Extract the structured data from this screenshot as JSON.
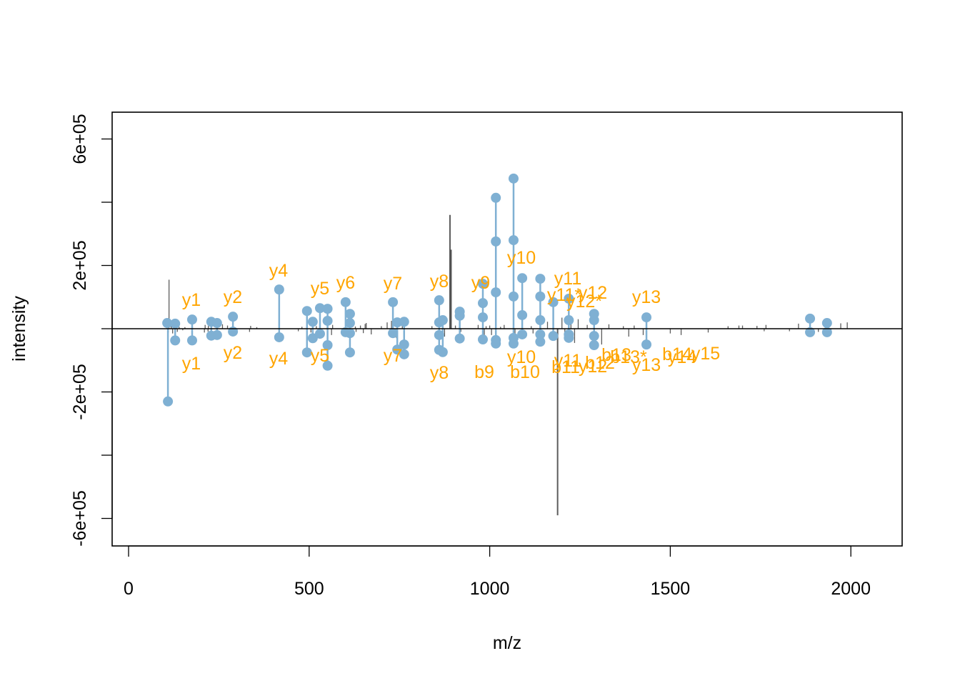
{
  "chart_data": {
    "type": "bar",
    "subtype": "mirror-spectrum",
    "title": "",
    "xlabel": "m/z",
    "ylabel": "intensity",
    "xlim": [
      -80,
      2150
    ],
    "ylim": [
      -680000,
      680000
    ],
    "x_ticks": [
      0,
      500,
      1000,
      1500,
      2000
    ],
    "x_tick_labels": [
      "0",
      "500",
      "1000",
      "1500",
      "2000"
    ],
    "y_ticks": [
      600000,
      400000,
      200000,
      0,
      -200000,
      -400000,
      -600000
    ],
    "y_tick_labels": [
      "6e+05",
      "",
      "2e+05",
      "",
      "-2e+05",
      "",
      "-6e+05"
    ],
    "grid": false,
    "legend": null,
    "colors": {
      "matched_peak": "#7FB0D3",
      "fragment_label": "#FFA500",
      "raw_peak": "#000000",
      "axis": "#000000"
    },
    "raw_peaks_top": [
      [
        112,
        155000
      ],
      [
        118,
        8000
      ],
      [
        140,
        6000
      ],
      [
        156,
        5000
      ],
      [
        212,
        12000
      ],
      [
        221,
        9000
      ],
      [
        260,
        14000
      ],
      [
        274,
        10000
      ],
      [
        338,
        9000
      ],
      [
        355,
        5000
      ],
      [
        480,
        6000
      ],
      [
        520,
        8000
      ],
      [
        565,
        12000
      ],
      [
        628,
        7000
      ],
      [
        642,
        10000
      ],
      [
        655,
        15000
      ],
      [
        658,
        18000
      ],
      [
        700,
        8000
      ],
      [
        716,
        20000
      ],
      [
        728,
        25000
      ],
      [
        758,
        12000
      ],
      [
        840,
        8000
      ],
      [
        890,
        360000
      ],
      [
        893,
        250000
      ],
      [
        905,
        10000
      ],
      [
        968,
        12000
      ],
      [
        990,
        8000
      ],
      [
        1000,
        10000
      ],
      [
        1030,
        6000
      ],
      [
        1040,
        12000
      ],
      [
        1115,
        8000
      ],
      [
        1160,
        22000
      ],
      [
        1200,
        35000
      ],
      [
        1225,
        30000
      ],
      [
        1245,
        30000
      ],
      [
        1270,
        12000
      ],
      [
        1330,
        14000
      ],
      [
        1370,
        8000
      ],
      [
        1400,
        10000
      ],
      [
        1660,
        8000
      ],
      [
        1690,
        10000
      ],
      [
        1700,
        10000
      ],
      [
        1740,
        9000
      ],
      [
        1765,
        12000
      ],
      [
        1855,
        16000
      ],
      [
        1935,
        20000
      ],
      [
        1972,
        17000
      ],
      [
        1990,
        20000
      ]
    ],
    "raw_peaks_bottom": [
      [
        110,
        -12000
      ],
      [
        122,
        -15000
      ],
      [
        135,
        -10000
      ],
      [
        150,
        -5000
      ],
      [
        210,
        -12000
      ],
      [
        220,
        -9000
      ],
      [
        300,
        -14000
      ],
      [
        335,
        -10000
      ],
      [
        470,
        -8000
      ],
      [
        505,
        -12000
      ],
      [
        562,
        -20000
      ],
      [
        630,
        -10000
      ],
      [
        650,
        -14000
      ],
      [
        672,
        -18000
      ],
      [
        742,
        -30000
      ],
      [
        860,
        -35000
      ],
      [
        875,
        -25000
      ],
      [
        920,
        -10000
      ],
      [
        985,
        -40000
      ],
      [
        1005,
        -20000
      ],
      [
        1070,
        -35000
      ],
      [
        1120,
        -15000
      ],
      [
        1188,
        -590000
      ],
      [
        1208,
        -25000
      ],
      [
        1235,
        -45000
      ],
      [
        1310,
        -50000
      ],
      [
        1385,
        -25000
      ],
      [
        1425,
        -20000
      ],
      [
        1500,
        -15000
      ],
      [
        1530,
        -20000
      ],
      [
        1605,
        -12000
      ],
      [
        1760,
        -8000
      ],
      [
        1830,
        -8000
      ],
      [
        1910,
        -10000
      ],
      [
        1945,
        -10000
      ]
    ],
    "matched_peaks_top": [
      {
        "mz": 107,
        "intensities": [
          18000
        ]
      },
      {
        "mz": 129,
        "intensities": [
          16000
        ]
      },
      {
        "mz": 176,
        "intensities": [
          29000
        ]
      },
      {
        "mz": 229,
        "intensities": [
          22000
        ]
      },
      {
        "mz": 245,
        "intensities": [
          18000
        ]
      },
      {
        "mz": 289,
        "intensities": [
          38000
        ]
      },
      {
        "mz": 417,
        "intensities": [
          124000
        ]
      },
      {
        "mz": 494,
        "intensities": [
          56000
        ]
      },
      {
        "mz": 510,
        "intensities": [
          22000
        ]
      },
      {
        "mz": 530,
        "intensities": [
          65000
        ]
      },
      {
        "mz": 551,
        "intensities": [
          63000,
          25000
        ]
      },
      {
        "mz": 601,
        "intensities": [
          84000
        ]
      },
      {
        "mz": 613,
        "intensities": [
          47000,
          18000
        ]
      },
      {
        "mz": 732,
        "intensities": [
          84000
        ]
      },
      {
        "mz": 744,
        "intensities": [
          20000
        ]
      },
      {
        "mz": 763,
        "intensities": [
          22000
        ]
      },
      {
        "mz": 860,
        "intensities": [
          90000,
          20000
        ]
      },
      {
        "mz": 870,
        "intensities": [
          27000
        ]
      },
      {
        "mz": 917,
        "intensities": [
          54000,
          41000
        ]
      },
      {
        "mz": 981,
        "intensities": [
          142000,
          81000,
          36000
        ]
      },
      {
        "mz": 1017,
        "intensities": [
          414000,
          276000,
          115000
        ]
      },
      {
        "mz": 1066,
        "intensities": [
          475000,
          280000,
          102000
        ]
      },
      {
        "mz": 1090,
        "intensities": [
          160000,
          43000
        ]
      },
      {
        "mz": 1140,
        "intensities": [
          158000,
          102000,
          27000
        ]
      },
      {
        "mz": 1176,
        "intensities": [
          84000
        ]
      },
      {
        "mz": 1219,
        "intensities": [
          95000,
          27000
        ]
      },
      {
        "mz": 1289,
        "intensities": [
          47000,
          27000
        ]
      },
      {
        "mz": 1434,
        "intensities": [
          36000
        ]
      },
      {
        "mz": 1887,
        "intensities": [
          32000
        ]
      },
      {
        "mz": 1934,
        "intensities": [
          18000
        ]
      }
    ],
    "matched_peaks_bottom": [
      {
        "mz": 109,
        "intensities": [
          -230000
        ]
      },
      {
        "mz": 129,
        "intensities": [
          -37000
        ]
      },
      {
        "mz": 176,
        "intensities": [
          -37000
        ]
      },
      {
        "mz": 229,
        "intensities": [
          -22000
        ]
      },
      {
        "mz": 245,
        "intensities": [
          -20000
        ]
      },
      {
        "mz": 289,
        "intensities": [
          -9000
        ]
      },
      {
        "mz": 417,
        "intensities": [
          -27000
        ]
      },
      {
        "mz": 494,
        "intensities": [
          -75000
        ]
      },
      {
        "mz": 510,
        "intensities": [
          -30000
        ]
      },
      {
        "mz": 530,
        "intensities": [
          -16000
        ]
      },
      {
        "mz": 551,
        "intensities": [
          -52000,
          -117000
        ]
      },
      {
        "mz": 601,
        "intensities": [
          -11000
        ]
      },
      {
        "mz": 613,
        "intensities": [
          -75000,
          -14000
        ]
      },
      {
        "mz": 732,
        "intensities": [
          -14000
        ]
      },
      {
        "mz": 744,
        "intensities": [
          -66000
        ]
      },
      {
        "mz": 763,
        "intensities": [
          -50000,
          -81000
        ]
      },
      {
        "mz": 860,
        "intensities": [
          -20000,
          -67000
        ]
      },
      {
        "mz": 870,
        "intensities": [
          -74000
        ]
      },
      {
        "mz": 917,
        "intensities": [
          -31000
        ]
      },
      {
        "mz": 981,
        "intensities": [
          -34000
        ]
      },
      {
        "mz": 1017,
        "intensities": [
          -36000,
          -47000
        ]
      },
      {
        "mz": 1066,
        "intensities": [
          -29000,
          -47000
        ]
      },
      {
        "mz": 1090,
        "intensities": [
          -18000
        ]
      },
      {
        "mz": 1140,
        "intensities": [
          -18000,
          -41000
        ]
      },
      {
        "mz": 1176,
        "intensities": [
          -23000
        ]
      },
      {
        "mz": 1219,
        "intensities": [
          -18000,
          -29000
        ]
      },
      {
        "mz": 1289,
        "intensities": [
          -23000,
          -52000
        ]
      },
      {
        "mz": 1434,
        "intensities": [
          -50000
        ]
      },
      {
        "mz": 1887,
        "intensities": [
          -11000
        ]
      },
      {
        "mz": 1934,
        "intensities": [
          -11000
        ]
      }
    ],
    "labels_top": [
      {
        "text": "y1",
        "x": 268,
        "y": 428
      },
      {
        "text": "y2",
        "x": 326,
        "y": 424
      },
      {
        "text": "y4",
        "x": 390,
        "y": 387
      },
      {
        "text": "y5",
        "x": 448,
        "y": 412
      },
      {
        "text": "y6",
        "x": 484,
        "y": 404
      },
      {
        "text": "y7",
        "x": 550,
        "y": 405
      },
      {
        "text": "y8",
        "x": 615,
        "y": 402
      },
      {
        "text": "y9",
        "x": 673,
        "y": 404
      },
      {
        "text": "y10",
        "x": 730,
        "y": 369
      },
      {
        "text": "y11",
        "x": 795,
        "y": 398
      },
      {
        "text": "y11*",
        "x": 790,
        "y": 421
      },
      {
        "text": "y12",
        "x": 830,
        "y": 418
      },
      {
        "text": "y12*",
        "x": 818,
        "y": 430
      },
      {
        "text": "y13",
        "x": 905,
        "y": 424
      }
    ],
    "labels_bottom": [
      {
        "text": "y1",
        "x": 268,
        "y": 517
      },
      {
        "text": "y2",
        "x": 326,
        "y": 502
      },
      {
        "text": "y4",
        "x": 390,
        "y": 510
      },
      {
        "text": "y5",
        "x": 448,
        "y": 506
      },
      {
        "text": "y7",
        "x": 550,
        "y": 506
      },
      {
        "text": "y8",
        "x": 615,
        "y": 530
      },
      {
        "text": "b9",
        "x": 678,
        "y": 529
      },
      {
        "text": "y10",
        "x": 730,
        "y": 508
      },
      {
        "text": "b10",
        "x": 735,
        "y": 529
      },
      {
        "text": "y11",
        "x": 795,
        "y": 513
      },
      {
        "text": "b11",
        "x": 792,
        "y": 522
      },
      {
        "text": "y12",
        "x": 830,
        "y": 521
      },
      {
        "text": "b12",
        "x": 840,
        "y": 516
      },
      {
        "text": "b13",
        "x": 863,
        "y": 505
      },
      {
        "text": "b13*",
        "x": 880,
        "y": 508
      },
      {
        "text": "y13",
        "x": 905,
        "y": 519
      },
      {
        "text": "b14",
        "x": 948,
        "y": 504
      },
      {
        "text": "y14",
        "x": 955,
        "y": 508
      },
      {
        "text": "y15",
        "x": 988,
        "y": 503
      }
    ]
  }
}
